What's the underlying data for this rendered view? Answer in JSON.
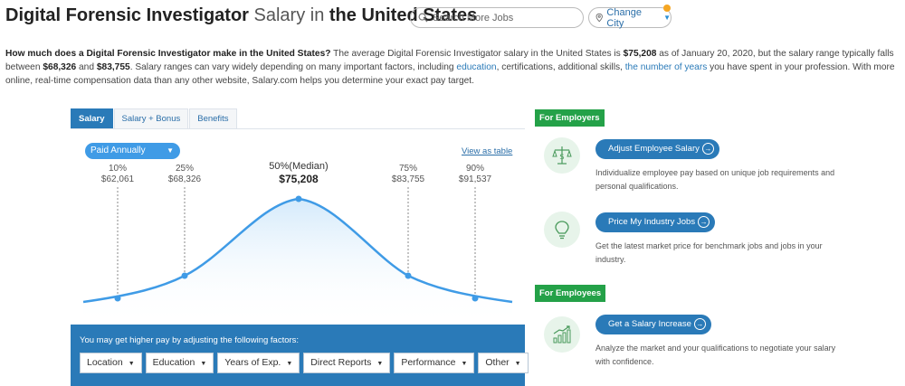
{
  "header": {
    "title_bold_1": "Digital Forensic Investigator",
    "title_light": "Salary in",
    "title_bold_2": "the United States",
    "search_placeholder": "Search More Jobs",
    "change_city_label": "Change City"
  },
  "intro": {
    "q": "How much does a Digital Forensic Investigator make in the United States?",
    "p1": " The average Digital Forensic Investigator salary in the United States is ",
    "avg": "$75,208",
    "p2": " as of January 20, 2020, but the salary range typically falls between ",
    "low": "$68,326",
    "p3": " and ",
    "high": "$83,755",
    "p4": ". Salary ranges can vary widely depending on many important factors, including ",
    "link1": "education",
    "p5": ", certifications, additional skills, ",
    "link2": "the number of years",
    "p6": " you have spent in your profession. With more online, real-time compensation data than any other website, Salary.com helps you determine your exact pay target."
  },
  "tabs": [
    "Salary",
    "Salary + Bonus",
    "Benefits"
  ],
  "chart": {
    "paid_label": "Paid Annually",
    "view_table": "View as table",
    "percentiles": [
      {
        "label": "10%",
        "value": "$62,061"
      },
      {
        "label": "25%",
        "value": "$68,326"
      },
      {
        "label": "50%(Median)",
        "value": "$75,208"
      },
      {
        "label": "75%",
        "value": "$83,755"
      },
      {
        "label": "90%",
        "value": "$91,537"
      }
    ]
  },
  "factors": {
    "label": "You may get higher pay by adjusting the following factors:",
    "items": [
      "Location",
      "Education",
      "Years of Exp.",
      "Direct Reports",
      "Performance",
      "Other"
    ]
  },
  "employers": {
    "badge": "For Employers",
    "items": [
      {
        "button": "Adjust Employee Salary",
        "desc": "Individualize employee pay based on unique job requirements and personal qualifications.",
        "icon": "scales-money-icon"
      },
      {
        "button": "Price My Industry Jobs",
        "desc": "Get the latest market price for benchmark jobs and jobs in your industry.",
        "icon": "lightbulb-icon"
      }
    ]
  },
  "employees": {
    "badge": "For Employees",
    "items": [
      {
        "button": "Get a Salary Increase",
        "desc": "Analyze the market and your qualifications to negotiate your salary with confidence.",
        "icon": "growth-chart-icon"
      }
    ]
  },
  "colors": {
    "accent": "#2a7ab8",
    "curve": "#3f9be6",
    "green": "#24a148"
  }
}
